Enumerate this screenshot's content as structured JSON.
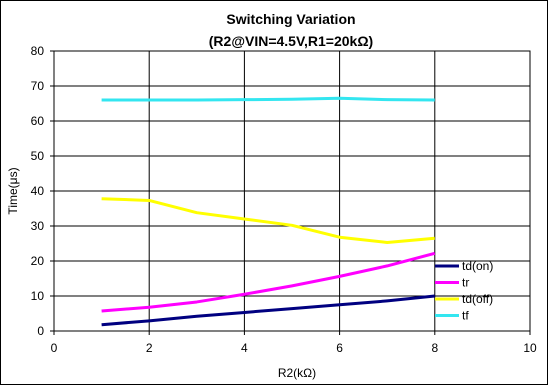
{
  "chart_data": {
    "type": "line",
    "title": "Switching Variation",
    "subtitle": "(R2@VIN=4.5V,R1=20kΩ)",
    "xlabel": "R2(kΩ)",
    "ylabel": "Time(μs)",
    "xlim": [
      0,
      10
    ],
    "ylim": [
      0,
      80
    ],
    "xticks": [
      0,
      2,
      4,
      6,
      8,
      10
    ],
    "yticks": [
      0,
      10,
      20,
      30,
      40,
      50,
      60,
      70,
      80
    ],
    "grid": true,
    "legend_position": "right",
    "x": [
      1,
      2,
      3,
      4,
      5,
      6,
      7,
      8
    ],
    "series": [
      {
        "name": "td(on)",
        "color": "#000080",
        "values": [
          1.8,
          2.9,
          4.2,
          5.3,
          6.4,
          7.5,
          8.6,
          10.0
        ]
      },
      {
        "name": "tr",
        "color": "#ff00ff",
        "values": [
          5.7,
          6.8,
          8.3,
          10.5,
          12.9,
          15.6,
          18.6,
          22.2
        ]
      },
      {
        "name": "td(off)",
        "color": "#ffff00",
        "values": [
          37.8,
          37.3,
          33.8,
          32.0,
          30.2,
          26.8,
          25.3,
          26.5
        ]
      },
      {
        "name": "tf",
        "color": "#33e6f0",
        "values": [
          66.0,
          66.0,
          66.0,
          66.1,
          66.2,
          66.5,
          66.1,
          66.0
        ]
      }
    ]
  }
}
